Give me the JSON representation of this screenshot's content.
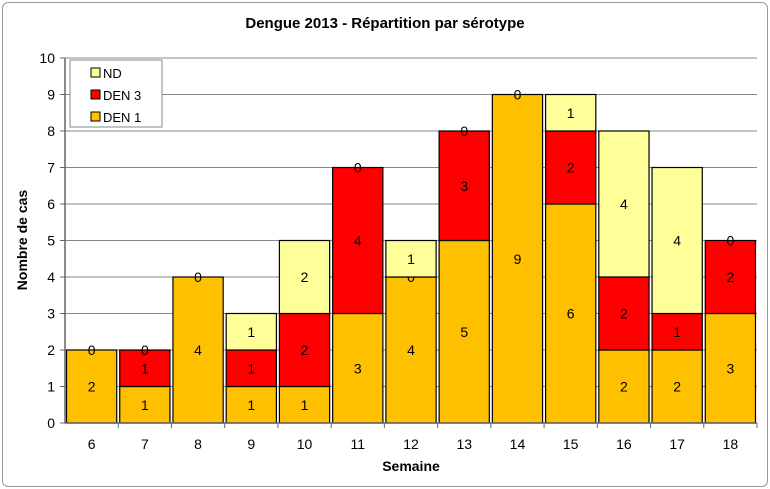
{
  "chart_data": {
    "type": "bar",
    "stacked": true,
    "title": "Dengue 2013 - Répartition par sérotype",
    "xlabel": "Semaine",
    "ylabel": "Nombre de cas",
    "ylim": [
      0,
      10
    ],
    "yticks": [
      "0",
      "1",
      "2",
      "3",
      "4",
      "5",
      "6",
      "7",
      "8",
      "9",
      "10"
    ],
    "grid": true,
    "legend_position": "top-left",
    "categories": [
      "6",
      "7",
      "8",
      "9",
      "10",
      "11",
      "12",
      "13",
      "14",
      "15",
      "16",
      "17",
      "18"
    ],
    "series": [
      {
        "name": "DEN 1",
        "color": "#FFC000",
        "values": [
          2,
          1,
          4,
          1,
          1,
          3,
          4,
          5,
          9,
          6,
          2,
          2,
          3
        ]
      },
      {
        "name": "DEN 3",
        "color": "#FF0000",
        "values": [
          0,
          1,
          0,
          1,
          2,
          4,
          0,
          3,
          0,
          2,
          2,
          1,
          2
        ]
      },
      {
        "name": "ND",
        "color": "#FFFF99",
        "values": [
          null,
          0,
          null,
          1,
          2,
          0,
          1,
          0,
          null,
          1,
          4,
          4,
          0
        ]
      }
    ],
    "legend_order": [
      "ND",
      "DEN 3",
      "DEN 1"
    ]
  }
}
